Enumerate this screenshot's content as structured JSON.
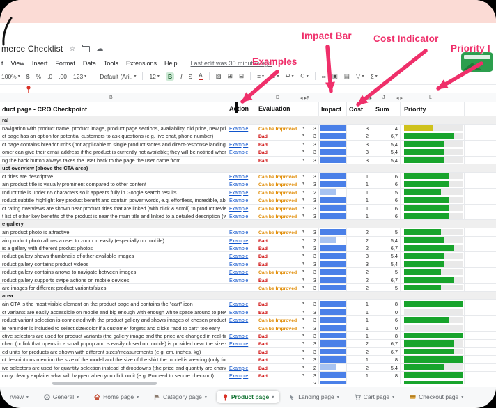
{
  "window": {
    "title": "merce Checklist",
    "last_edit": "Last edit was 30 minutes ago"
  },
  "menu": {
    "items": [
      "t",
      "View",
      "Insert",
      "Format",
      "Data",
      "Tools",
      "Extensions",
      "Help"
    ]
  },
  "toolbar": {
    "items": [
      {
        "name": "zoom-select",
        "glyph": "100%",
        "dd": true
      },
      {
        "name": "currency-format-button",
        "glyph": "$"
      },
      {
        "name": "percent-format-button",
        "glyph": "%"
      },
      {
        "name": "decrease-decimal-button",
        "glyph": ".0"
      },
      {
        "name": "increase-decimal-button",
        "glyph": ".00"
      },
      {
        "name": "number-format-button",
        "glyph": "123",
        "dd": true
      },
      {
        "name": "separator",
        "sep": true
      },
      {
        "name": "font-select",
        "glyph": "Default (Ari..",
        "dd": true
      },
      {
        "name": "separator",
        "sep": true
      },
      {
        "name": "font-size-select",
        "glyph": "12",
        "dd": true
      },
      {
        "name": "bold-button",
        "glyph": "B",
        "style": "bold"
      },
      {
        "name": "italic-button",
        "glyph": "I",
        "style": "italic"
      },
      {
        "name": "strikethrough-button",
        "glyph": "S",
        "style": "strike"
      },
      {
        "name": "text-color-button",
        "glyph": "A",
        "style": "color"
      },
      {
        "name": "separator",
        "sep": true
      },
      {
        "name": "fill-color-button",
        "glyph": "▨"
      },
      {
        "name": "borders-button",
        "glyph": "⊞"
      },
      {
        "name": "merge-cells-button",
        "glyph": "⊟"
      },
      {
        "name": "separator",
        "sep": true
      },
      {
        "name": "horizontal-align-button",
        "glyph": "≡",
        "dd": true
      },
      {
        "name": "vertical-align-button",
        "glyph": "⊥",
        "dd": true
      },
      {
        "name": "text-wrap-button",
        "glyph": "↩",
        "dd": true
      },
      {
        "name": "text-rotation-button",
        "glyph": "↻",
        "dd": true
      },
      {
        "name": "separator",
        "sep": true
      },
      {
        "name": "insert-link-button",
        "glyph": "∞"
      },
      {
        "name": "insert-comment-button",
        "glyph": "▣"
      },
      {
        "name": "insert-chart-button",
        "glyph": "▤"
      },
      {
        "name": "filter-button",
        "glyph": "▽",
        "dd": true
      },
      {
        "name": "functions-button",
        "glyph": "Σ",
        "dd": true
      }
    ]
  },
  "annotations": {
    "examples": "Examples",
    "impact_bar": "Impact Bar",
    "cost_indicator": "Cost Indicator",
    "priority": "Priority I"
  },
  "sheet": {
    "letters": [
      "B",
      "D",
      "◂ ▸F",
      "◂ ▸",
      "J",
      "◂ ▸",
      "L"
    ],
    "header": {
      "checkpoint": "duct page - CRO Checkpoint",
      "action": "Action",
      "evaluation": "Evaluation",
      "impact": "Impact",
      "cost": "Cost",
      "sum": "Sum",
      "priority": "Priority"
    },
    "example_label": "Example",
    "eval_bad": "Bad",
    "eval_improve": "Can be Improved",
    "sections": [
      {
        "title": "ral",
        "rows": [
          {
            "text": "navigation with product name, product image, product page sections, availability, old price, new price",
            "example": true,
            "eval": "Can be Improved",
            "impact": 3,
            "cost": 3,
            "sum": "4",
            "bar": "yellow"
          },
          {
            "text": "ct page has an option for potential customers to ask questions (e.g. live chat, phone number)",
            "example": false,
            "eval": "Bad",
            "impact": 3,
            "cost": 2,
            "sum": "6,7",
            "bar": "green"
          },
          {
            "text": "ct page contains breadcrumbs (not applicable to single product stores and direct-response landing pa",
            "example": true,
            "eval": "Bad",
            "impact": 3,
            "cost": 3,
            "sum": "5,4",
            "bar": "green"
          },
          {
            "text": "omer can give their email address if the product is currently not available; they will be notified when i",
            "example": true,
            "eval": "Bad",
            "impact": 3,
            "cost": 3,
            "sum": "5,4",
            "bar": "green"
          },
          {
            "text": "ng the back button always takes the user back to the page the user came from",
            "example": false,
            "eval": "Bad",
            "impact": 3,
            "cost": 3,
            "sum": "5,4",
            "bar": "green"
          }
        ]
      },
      {
        "title": "uct overview (above the CTA area)",
        "rows": [
          {
            "text": "ct titles are descriptive",
            "example": true,
            "eval": "Can be Improved",
            "impact": 3,
            "cost": 1,
            "sum": "6",
            "bar": "green"
          },
          {
            "text": "ain product title is visually prominent compared to other content",
            "example": true,
            "eval": "Can be Improved",
            "impact": 3,
            "cost": 1,
            "sum": "6",
            "bar": "green"
          },
          {
            "text": "roduct title is under 65 characters so it appears fully in Google search results",
            "example": true,
            "eval": "Can be Improved",
            "impact": 2,
            "cost": 1,
            "sum": "5",
            "bar": "green"
          },
          {
            "text": "roduct subtitle highlight key product benefit and contain power words, e.g. effortless, incredible, absol",
            "example": true,
            "eval": "Can be Improved",
            "impact": 3,
            "cost": 1,
            "sum": "6",
            "bar": "green"
          },
          {
            "text": "ct rating overviews are shown near product titles that are linked (with click & scroll) to product review",
            "example": true,
            "eval": "Can be Improved",
            "impact": 3,
            "cost": 1,
            "sum": "6",
            "bar": "green"
          },
          {
            "text": "t list of other key benefits of the product is near the main title and linked to a detailed description (wit",
            "example": true,
            "eval": "Can be Improved",
            "impact": 3,
            "cost": 1,
            "sum": "6",
            "bar": "green"
          }
        ]
      },
      {
        "title": "e gallery",
        "rows": [
          {
            "text": "ain product photo is attractive",
            "example": true,
            "eval": "Can be Improved",
            "impact": 3,
            "cost": 2,
            "sum": "5",
            "bar": "green"
          },
          {
            "text": "ain product photo allows a user to zoom in easily (especially on mobile)",
            "example": true,
            "eval": "Bad",
            "impact": 2,
            "cost": 2,
            "sum": "5,4",
            "bar": "green"
          },
          {
            "text": "is a gallery with different product photos",
            "example": true,
            "eval": "Bad",
            "impact": 3,
            "cost": 2,
            "sum": "6,7",
            "bar": "green"
          },
          {
            "text": "roduct gallery shows thumbnails of other available images",
            "example": true,
            "eval": "Bad",
            "impact": 3,
            "cost": 3,
            "sum": "5,4",
            "bar": "green"
          },
          {
            "text": "roduct gallery contains product videos",
            "example": true,
            "eval": "Bad",
            "impact": 3,
            "cost": 3,
            "sum": "5,4",
            "bar": "green"
          },
          {
            "text": "roduct gallery contains arrows to navigate between images",
            "example": true,
            "eval": "Can be Improved",
            "impact": 3,
            "cost": 2,
            "sum": "5",
            "bar": "green"
          },
          {
            "text": "roduct gallery supports swipe actions on mobile devices",
            "example": true,
            "eval": "Bad",
            "impact": 3,
            "cost": 2,
            "sum": "6,7",
            "bar": "green"
          },
          {
            "text": "are images for different product variants/sizes",
            "example": false,
            "eval": "Can be Improved",
            "impact": 3,
            "cost": 2,
            "sum": "5",
            "bar": "green"
          }
        ]
      },
      {
        "title": "area",
        "rows": [
          {
            "text": "ain CTA is the most visible element on the product page and contains the \"cart\" icon",
            "example": true,
            "eval": "Bad",
            "impact": 3,
            "cost": 1,
            "sum": "8",
            "bar": "green"
          },
          {
            "text": "ct variants are easily accessible on mobile and big enough with enough white space around to preve",
            "example": true,
            "eval": "Bad",
            "impact": 3,
            "cost": 1,
            "sum": "0",
            "bar": "none"
          },
          {
            "text": "roduct variant selection is connected with the product gallery and shows images of chosen product va",
            "example": true,
            "eval": "Can be Improved",
            "impact": 3,
            "cost": 1,
            "sum": "6",
            "bar": "green"
          },
          {
            "text": "le reminder is included to select size/color if a customer forgets and clicks \"add to cart\" too early",
            "example": false,
            "eval": "Can be Improved",
            "impact": 3,
            "cost": 1,
            "sum": "0",
            "bar": "none"
          },
          {
            "text": "ctive selectors are used for product variants (the gallery image and the price are changed in real-time",
            "example": true,
            "eval": "Bad",
            "impact": 3,
            "cost": 1,
            "sum": "8",
            "bar": "green"
          },
          {
            "text": "chart (or link that opens in a small popup and is easily closed on mobile) is provided near the size se",
            "example": true,
            "eval": "Bad",
            "impact": 3,
            "cost": 2,
            "sum": "6,7",
            "bar": "green"
          },
          {
            "text": "ed units for products are shown with different sizes/measurements (e.g. cm, inches, kg)",
            "example": false,
            "eval": "Bad",
            "impact": 3,
            "cost": 2,
            "sum": "6,7",
            "bar": "green"
          },
          {
            "text": "ct descriptions mention the size of the model and the size of the shirt the model is wearing (only for a",
            "example": false,
            "eval": "Bad",
            "impact": 3,
            "cost": 1,
            "sum": "8",
            "bar": "green"
          },
          {
            "text": "ive selectors are used for quantity selection instead of dropdowns (the price and quantity are chang",
            "example": true,
            "eval": "Bad",
            "impact": 2,
            "cost": 2,
            "sum": "5,4",
            "bar": "green"
          },
          {
            "text": "copy clearly explains what will happen when you click on it (e.g. Proceed to secure checkout)",
            "example": true,
            "eval": "Bad",
            "impact": 3,
            "cost": 1,
            "sum": "8",
            "bar": "green"
          }
        ]
      }
    ],
    "partial_row": {
      "impact": 3,
      "sum": "8",
      "bar": "green"
    }
  },
  "tabs": [
    {
      "label": "rview",
      "icon": "none",
      "active": false
    },
    {
      "label": "General",
      "icon": "gear",
      "active": false
    },
    {
      "label": "Home page",
      "icon": "home",
      "active": false
    },
    {
      "label": "Category page",
      "icon": "flag",
      "active": false
    },
    {
      "label": "Product page",
      "icon": "pin",
      "active": true
    },
    {
      "label": "Landing page",
      "icon": "cursor",
      "active": false
    },
    {
      "label": "Cart page",
      "icon": "cart",
      "active": false
    },
    {
      "label": "Checkout page",
      "icon": "card",
      "active": false
    }
  ],
  "colors": {
    "annotation_pink": "#ef2f6a",
    "band_pink": "#fbdbd5",
    "impact_blue": "#4a80e8",
    "impact_light_blue": "#a7c3f1",
    "priority_green": "#18a42c",
    "priority_yellow": "#cfc21c",
    "bad_red": "#cc0000",
    "improve_orange": "#e08a00",
    "link_blue": "#1155cc",
    "active_tab_green": "#137333"
  }
}
